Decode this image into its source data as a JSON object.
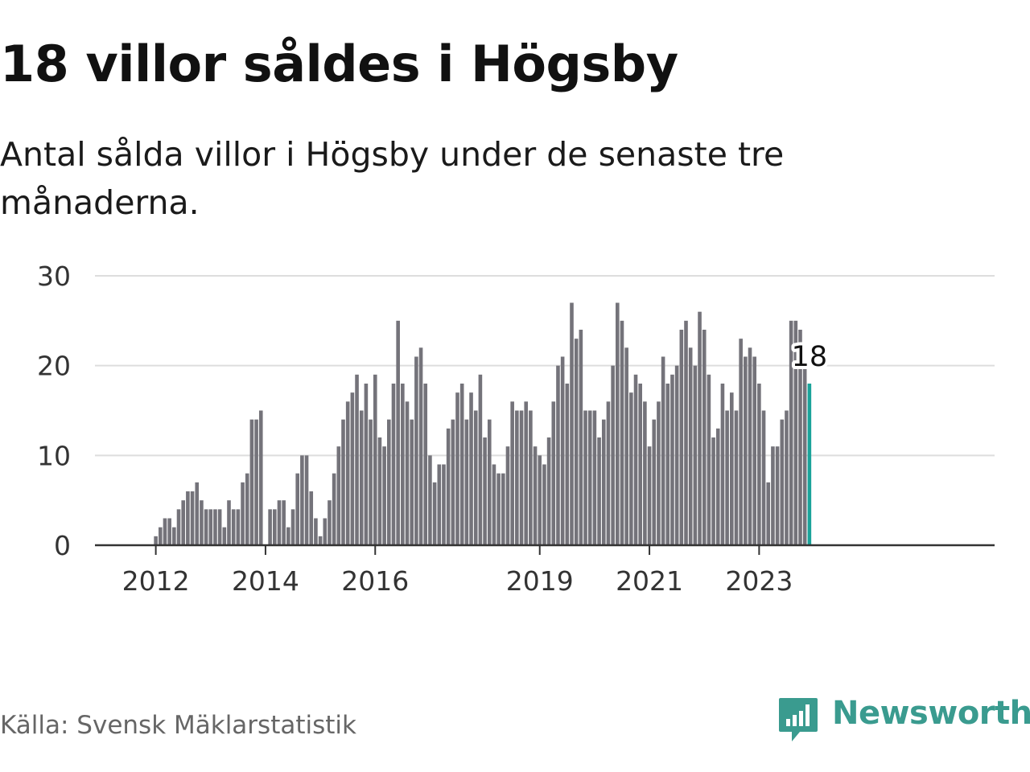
{
  "title": "18 villor såldes i Högsby",
  "subtitle": "Antal sålda villor i Högsby under de senaste tre månaderna.",
  "source": "Källa: Svensk Mäklarstatistik",
  "brand": {
    "name": "Newsworthy",
    "color": "#3a9b8f"
  },
  "colors": {
    "bar": "#74737a",
    "highlight": "#1aa39a",
    "grid": "#dddddd",
    "axis": "#333333"
  },
  "chart_data": {
    "type": "bar",
    "title": "18 villor såldes i Högsby",
    "xlabel": "",
    "ylabel": "",
    "ylim": [
      0,
      30
    ],
    "yticks": [
      0,
      10,
      20,
      30
    ],
    "xticks": [
      {
        "label": "2012",
        "index": 4
      },
      {
        "label": "2014",
        "index": 28
      },
      {
        "label": "2016",
        "index": 52
      },
      {
        "label": "2019",
        "index": 88
      },
      {
        "label": "2021",
        "index": 112
      },
      {
        "label": "2023",
        "index": 136
      }
    ],
    "last_value_label": "18",
    "values": [
      0,
      0,
      0,
      0,
      1,
      2,
      3,
      3,
      2,
      4,
      5,
      6,
      6,
      7,
      5,
      4,
      4,
      4,
      4,
      2,
      5,
      4,
      4,
      7,
      8,
      14,
      14,
      15,
      0,
      4,
      4,
      5,
      5,
      2,
      4,
      8,
      10,
      10,
      6,
      3,
      1,
      3,
      5,
      8,
      11,
      14,
      16,
      17,
      19,
      15,
      18,
      14,
      19,
      12,
      11,
      14,
      18,
      25,
      18,
      16,
      14,
      21,
      22,
      18,
      10,
      7,
      9,
      9,
      13,
      14,
      17,
      18,
      14,
      17,
      15,
      19,
      12,
      14,
      9,
      8,
      8,
      11,
      16,
      15,
      15,
      16,
      15,
      11,
      10,
      9,
      12,
      16,
      20,
      21,
      18,
      27,
      23,
      24,
      15,
      15,
      15,
      12,
      14,
      16,
      20,
      27,
      25,
      22,
      17,
      19,
      18,
      16,
      11,
      14,
      16,
      21,
      18,
      19,
      20,
      24,
      25,
      22,
      20,
      26,
      24,
      19,
      12,
      13,
      18,
      15,
      17,
      15,
      23,
      21,
      22,
      21,
      18,
      15,
      7,
      11,
      11,
      14,
      15,
      25,
      25,
      24,
      20,
      18
    ]
  }
}
